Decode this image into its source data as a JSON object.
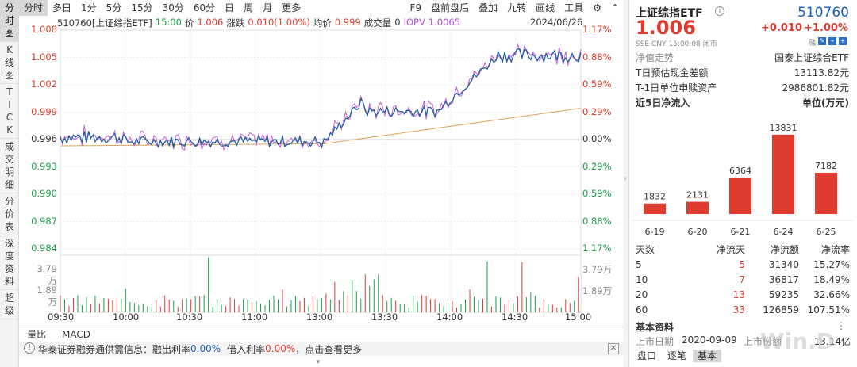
{
  "left_tabs": [
    {
      "label": "分时图",
      "name": "tab-intraday",
      "active": true
    },
    {
      "label": "K线图",
      "name": "tab-kline"
    },
    {
      "label": "TICK",
      "name": "tab-tick"
    },
    {
      "label": "成交明细",
      "name": "tab-trade-detail"
    },
    {
      "label": "分价表",
      "name": "tab-price-table"
    },
    {
      "label": "深度资料",
      "name": "tab-deep-data"
    },
    {
      "label": "超级",
      "name": "tab-super"
    }
  ],
  "toolbar": {
    "periods": [
      "分时",
      "多日",
      "1分",
      "5分",
      "15分",
      "30分",
      "60分",
      "日",
      "周",
      "月",
      "更多"
    ],
    "active_period": "分时",
    "right_items": [
      "F9",
      "盘前盘后",
      "叠加",
      "九转",
      "画线",
      "工具"
    ],
    "gear_icon": "gear-icon",
    "collapse_icon": "chevron-up-icon"
  },
  "chart_info": {
    "code_name": "510760[上证综指ETF]",
    "time": "15:00",
    "price_label": "价",
    "price": "1.006",
    "change_label": "涨跌",
    "change": "0.010(1.00%)",
    "avg_label": "均价",
    "avg": "0.999",
    "volume_label": "成交量",
    "volume": "0",
    "iopv_label": "IOPV",
    "iopv": "1.0065",
    "date": "2024/06/26"
  },
  "y_axis_left": [
    "1.008",
    "1.005",
    "1.002",
    "0.999",
    "0.996",
    "0.993",
    "0.990",
    "0.987",
    "0.984"
  ],
  "y_axis_right": [
    "1.17%",
    "0.88%",
    "0.59%",
    "0.29%",
    "0.00%",
    "0.29%",
    "0.59%",
    "0.88%",
    "1.17%"
  ],
  "vol_axis": [
    "3.79万",
    "1.89万"
  ],
  "x_axis": [
    "09:30",
    "10:00",
    "10:30",
    "11:00",
    "13:00",
    "13:30",
    "14:00",
    "14:30",
    "15:00"
  ],
  "bottom_tabs": [
    "量比",
    "MACD"
  ],
  "ticker": {
    "prefix": "华泰证券融券通供需信息：融出利率",
    "rate1": "0.00%",
    "mid": "借入利率",
    "rate2": "0.00%",
    "suffix": "，点击查看更多",
    "close_icon": "close-icon"
  },
  "right_panel": {
    "name": "上证综指ETF",
    "code": "510760",
    "price": "1.006",
    "change": "+0.010",
    "change_pct": "+1.00%",
    "sub": "SSE CNY 15:00:08 闭市",
    "nav_label": "净值走势",
    "nav_value": "国泰上证综合ETF",
    "t_cash_label": "T日预估现金差额",
    "t_cash_value": "13113.82元",
    "t1_label": "T-1日单位申赎资产",
    "t1_value": "2986801.82元",
    "flow_title": "近5日净流入",
    "flow_unit": "单位(万元)",
    "labels": {
      "days": "天数",
      "net_days": "净流天",
      "net_amt": "净流额",
      "net_rate": "净流率"
    },
    "stats": [
      {
        "days": "5",
        "net_days": "5",
        "net_amt": "31340",
        "net_rate": "15.27%"
      },
      {
        "days": "10",
        "net_days": "7",
        "net_amt": "36817",
        "net_rate": "18.49%"
      },
      {
        "days": "20",
        "net_days": "13",
        "net_amt": "59235",
        "net_rate": "32.66%"
      },
      {
        "days": "60",
        "net_days": "33",
        "net_amt": "126859",
        "net_rate": "107.51%"
      }
    ],
    "basic_title": "基本资料",
    "list_date_label": "上市日期",
    "list_date": "2020-09-09",
    "list_price_label": "上市份额",
    "list_price": "13.14亿",
    "tabs": [
      "盘口",
      "逐笔",
      "基本"
    ],
    "active_tab": "基本",
    "watermark": "Win.D"
  },
  "chart_data": {
    "type": "bar",
    "categories": [
      "6-19",
      "6-20",
      "6-21",
      "6-24",
      "6-25"
    ],
    "values": [
      1832,
      2131,
      6364,
      13831,
      7182
    ],
    "title": "近5日净流入",
    "ylabel": "单位(万元)",
    "ylim": [
      0,
      14500
    ],
    "colors": {
      "bar": "#e03b2f"
    }
  },
  "colors": {
    "up": "#e03b2f",
    "down": "#1d9e4a",
    "price_line": "#1f5e9c",
    "iopv_line": "#c25fe0",
    "avg_line": "#d9a45b",
    "accent_blue": "#1b5fb8"
  }
}
